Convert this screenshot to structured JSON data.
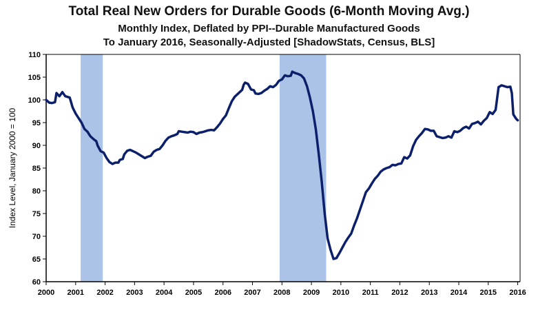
{
  "chart_data": {
    "type": "line",
    "title": "Total Real New Orders for Durable Goods (6-Month Moving Avg.)",
    "subtitle_lines": [
      "Monthly Index, Deflated by PPI--Durable Manufactured Goods",
      "To January 2016, Seasonally-Adjusted [ShadowStats, Census, BLS]"
    ],
    "xlabel": "",
    "ylabel": "Index Level, January 2000 = 100",
    "xlim": [
      2000,
      2016.08
    ],
    "ylim": [
      60,
      110
    ],
    "x_ticks": [
      2000,
      2001,
      2002,
      2003,
      2004,
      2005,
      2006,
      2007,
      2008,
      2009,
      2010,
      2011,
      2012,
      2013,
      2014,
      2015,
      2016
    ],
    "y_ticks": [
      60,
      65,
      70,
      75,
      80,
      85,
      90,
      95,
      100,
      105,
      110
    ],
    "grid": false,
    "legend": "none",
    "recessions": [
      [
        2001.17,
        2001.92
      ],
      [
        2007.92,
        2009.5
      ]
    ],
    "colors": {
      "line": "#0b1f6b",
      "recession": "#aac3e6",
      "axis": "#000000"
    },
    "series": [
      {
        "points": [
          [
            2000.0,
            100.0
          ],
          [
            2000.1,
            99.4
          ],
          [
            2000.2,
            99.3
          ],
          [
            2000.3,
            99.5
          ],
          [
            2000.35,
            101.5
          ],
          [
            2000.45,
            100.8
          ],
          [
            2000.55,
            101.7
          ],
          [
            2000.65,
            100.8
          ],
          [
            2000.8,
            100.5
          ],
          [
            2000.9,
            98.3
          ],
          [
            2001.0,
            97.0
          ],
          [
            2001.1,
            96.0
          ],
          [
            2001.2,
            95.0
          ],
          [
            2001.3,
            93.6
          ],
          [
            2001.4,
            93.0
          ],
          [
            2001.5,
            92.0
          ],
          [
            2001.6,
            91.4
          ],
          [
            2001.7,
            90.9
          ],
          [
            2001.75,
            89.9
          ],
          [
            2001.85,
            88.7
          ],
          [
            2001.95,
            88.4
          ],
          [
            2002.05,
            87.2
          ],
          [
            2002.15,
            86.3
          ],
          [
            2002.25,
            85.9
          ],
          [
            2002.35,
            86.2
          ],
          [
            2002.45,
            86.2
          ],
          [
            2002.5,
            86.8
          ],
          [
            2002.6,
            87.0
          ],
          [
            2002.65,
            88.0
          ],
          [
            2002.75,
            88.8
          ],
          [
            2002.85,
            89.0
          ],
          [
            2002.95,
            88.7
          ],
          [
            2003.05,
            88.4
          ],
          [
            2003.15,
            88.0
          ],
          [
            2003.25,
            87.6
          ],
          [
            2003.35,
            87.2
          ],
          [
            2003.45,
            87.5
          ],
          [
            2003.55,
            87.7
          ],
          [
            2003.65,
            88.6
          ],
          [
            2003.75,
            89.0
          ],
          [
            2003.85,
            89.2
          ],
          [
            2003.95,
            90.0
          ],
          [
            2004.05,
            91.0
          ],
          [
            2004.15,
            91.7
          ],
          [
            2004.25,
            92.0
          ],
          [
            2004.35,
            92.2
          ],
          [
            2004.45,
            92.5
          ],
          [
            2004.5,
            93.1
          ],
          [
            2004.6,
            93.0
          ],
          [
            2004.7,
            92.9
          ],
          [
            2004.8,
            92.8
          ],
          [
            2004.9,
            93.0
          ],
          [
            2005.0,
            92.9
          ],
          [
            2005.1,
            92.5
          ],
          [
            2005.2,
            92.8
          ],
          [
            2005.3,
            92.9
          ],
          [
            2005.4,
            93.1
          ],
          [
            2005.5,
            93.3
          ],
          [
            2005.6,
            93.4
          ],
          [
            2005.7,
            93.3
          ],
          [
            2005.8,
            94.0
          ],
          [
            2005.9,
            94.8
          ],
          [
            2006.0,
            95.8
          ],
          [
            2006.1,
            96.6
          ],
          [
            2006.2,
            98.2
          ],
          [
            2006.3,
            99.7
          ],
          [
            2006.4,
            100.7
          ],
          [
            2006.5,
            101.3
          ],
          [
            2006.6,
            101.9
          ],
          [
            2006.65,
            102.2
          ],
          [
            2006.7,
            103.3
          ],
          [
            2006.75,
            103.8
          ],
          [
            2006.85,
            103.5
          ],
          [
            2006.95,
            102.3
          ],
          [
            2007.05,
            102.1
          ],
          [
            2007.1,
            101.4
          ],
          [
            2007.2,
            101.3
          ],
          [
            2007.3,
            101.5
          ],
          [
            2007.4,
            102.0
          ],
          [
            2007.5,
            102.4
          ],
          [
            2007.6,
            103.0
          ],
          [
            2007.7,
            102.8
          ],
          [
            2007.8,
            103.3
          ],
          [
            2007.9,
            104.2
          ],
          [
            2008.0,
            104.5
          ],
          [
            2008.1,
            105.4
          ],
          [
            2008.2,
            105.2
          ],
          [
            2008.3,
            105.3
          ],
          [
            2008.35,
            106.2
          ],
          [
            2008.45,
            105.9
          ],
          [
            2008.55,
            105.7
          ],
          [
            2008.65,
            105.4
          ],
          [
            2008.75,
            104.7
          ],
          [
            2008.85,
            103.0
          ],
          [
            2008.95,
            100.5
          ],
          [
            2009.05,
            97.5
          ],
          [
            2009.15,
            93.5
          ],
          [
            2009.25,
            88.0
          ],
          [
            2009.35,
            82.0
          ],
          [
            2009.45,
            75.0
          ],
          [
            2009.55,
            69.5
          ],
          [
            2009.65,
            67.0
          ],
          [
            2009.75,
            65.0
          ],
          [
            2009.85,
            65.2
          ],
          [
            2009.95,
            66.3
          ],
          [
            2010.05,
            67.5
          ],
          [
            2010.15,
            68.7
          ],
          [
            2010.25,
            69.7
          ],
          [
            2010.35,
            70.6
          ],
          [
            2010.45,
            72.4
          ],
          [
            2010.55,
            74.0
          ],
          [
            2010.65,
            75.9
          ],
          [
            2010.75,
            77.8
          ],
          [
            2010.85,
            79.7
          ],
          [
            2010.95,
            80.5
          ],
          [
            2011.05,
            81.6
          ],
          [
            2011.15,
            82.6
          ],
          [
            2011.25,
            83.3
          ],
          [
            2011.35,
            84.2
          ],
          [
            2011.45,
            84.7
          ],
          [
            2011.55,
            85.0
          ],
          [
            2011.65,
            85.2
          ],
          [
            2011.75,
            85.7
          ],
          [
            2011.85,
            85.6
          ],
          [
            2011.95,
            85.9
          ],
          [
            2012.05,
            86.0
          ],
          [
            2012.15,
            87.4
          ],
          [
            2012.25,
            87.1
          ],
          [
            2012.35,
            87.8
          ],
          [
            2012.45,
            89.8
          ],
          [
            2012.55,
            91.2
          ],
          [
            2012.65,
            92.0
          ],
          [
            2012.75,
            92.7
          ],
          [
            2012.85,
            93.6
          ],
          [
            2012.95,
            93.5
          ],
          [
            2013.05,
            93.2
          ],
          [
            2013.15,
            93.2
          ],
          [
            2013.25,
            92.0
          ],
          [
            2013.35,
            91.8
          ],
          [
            2013.45,
            91.6
          ],
          [
            2013.55,
            91.7
          ],
          [
            2013.65,
            92.0
          ],
          [
            2013.75,
            91.7
          ],
          [
            2013.85,
            93.1
          ],
          [
            2013.95,
            92.9
          ],
          [
            2014.05,
            93.2
          ],
          [
            2014.15,
            93.8
          ],
          [
            2014.25,
            94.1
          ],
          [
            2014.35,
            93.7
          ],
          [
            2014.45,
            94.7
          ],
          [
            2014.55,
            94.9
          ],
          [
            2014.65,
            95.2
          ],
          [
            2014.75,
            94.6
          ],
          [
            2014.85,
            95.4
          ],
          [
            2014.95,
            96.0
          ],
          [
            2015.05,
            97.3
          ],
          [
            2015.15,
            96.9
          ],
          [
            2015.25,
            97.8
          ],
          [
            2015.35,
            102.8
          ],
          [
            2015.45,
            103.2
          ],
          [
            2015.55,
            103.0
          ],
          [
            2015.65,
            102.8
          ],
          [
            2015.75,
            102.9
          ],
          [
            2015.8,
            101.5
          ],
          [
            2015.85,
            96.8
          ],
          [
            2015.95,
            95.8
          ],
          [
            2016.0,
            95.5
          ]
        ]
      }
    ]
  }
}
